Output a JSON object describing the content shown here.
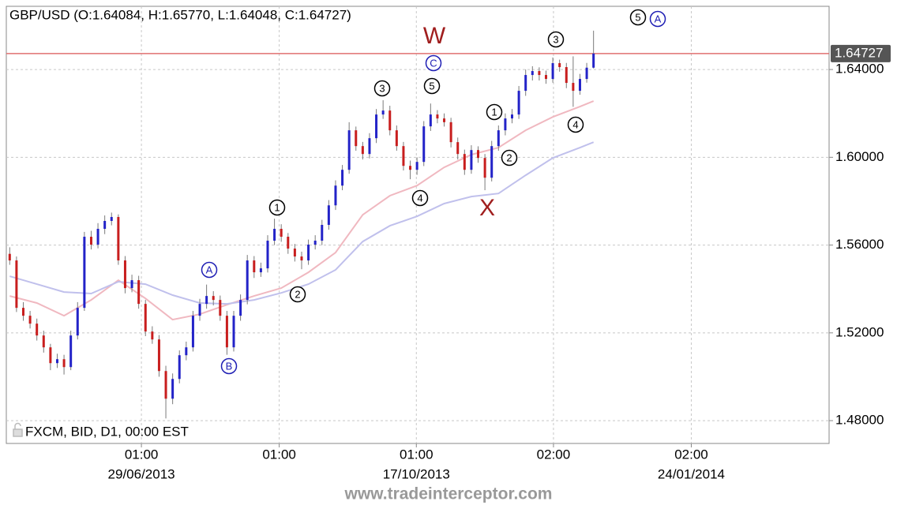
{
  "chart_data": {
    "type": "candlestick",
    "title": "GBP/USD (O:1.64084, H:1.65770, L:1.64048, C:1.64727)",
    "footer": "FXCM, BID, D1, 00:00 EST",
    "watermark": "www.tradeinterceptor.com",
    "up_color": "#2323c8",
    "down_color": "#c81e1e",
    "wick_color": "#7a7a7a",
    "grid": true,
    "xlim": [
      -0.5,
      120.7
    ],
    "ylim": [
      1.4696,
      1.6688
    ],
    "yticks": [
      {
        "value": 1.48,
        "label": "1.48000"
      },
      {
        "value": 1.52,
        "label": "1.52000"
      },
      {
        "value": 1.56,
        "label": "1.56000"
      },
      {
        "value": 1.6,
        "label": "1.60000"
      },
      {
        "value": 1.64,
        "label": "1.64000"
      }
    ],
    "xticks": [
      {
        "value": 19.4,
        "label": "01:00"
      },
      {
        "value": 39.7,
        "label": "01:00"
      },
      {
        "value": 59.9,
        "label": "01:00"
      },
      {
        "value": 80.1,
        "label": "02:00"
      },
      {
        "value": 100.4,
        "label": "02:00"
      }
    ],
    "xtick_dates": [
      "29/06/2013",
      null,
      "17/10/2013",
      null,
      "24/01/2014"
    ],
    "current_price": {
      "value": 1.64727,
      "label": "1.64727",
      "color": "#e07070"
    },
    "ohlc": [
      [
        1.556,
        1.559,
        1.551,
        1.553
      ],
      [
        1.553,
        1.5548,
        1.5295,
        1.5314
      ],
      [
        1.5314,
        1.534,
        1.5255,
        1.5278
      ],
      [
        1.5278,
        1.53,
        1.522,
        1.5242
      ],
      [
        1.5242,
        1.5265,
        1.5165,
        1.5188
      ],
      [
        1.5188,
        1.521,
        1.511,
        1.5134
      ],
      [
        1.5134,
        1.515,
        1.503,
        1.5062
      ],
      [
        1.5062,
        1.5105,
        1.504,
        1.508
      ],
      [
        1.508,
        1.51,
        1.501,
        1.5044
      ],
      [
        1.5044,
        1.521,
        1.503,
        1.5188
      ],
      [
        1.5188,
        1.534,
        1.517,
        1.5314
      ],
      [
        1.5314,
        1.566,
        1.53,
        1.5638
      ],
      [
        1.5638,
        1.5665,
        1.558,
        1.5602
      ],
      [
        1.5602,
        1.57,
        1.5585,
        1.5674
      ],
      [
        1.5674,
        1.5735,
        1.565,
        1.571
      ],
      [
        1.571,
        1.5748,
        1.569,
        1.5728
      ],
      [
        1.5728,
        1.574,
        1.551,
        1.553
      ],
      [
        1.553,
        1.555,
        1.538,
        1.5404
      ],
      [
        1.5404,
        1.5465,
        1.5385,
        1.544
      ],
      [
        1.544,
        1.546,
        1.531,
        1.5332
      ],
      [
        1.5332,
        1.535,
        1.5185,
        1.5206
      ],
      [
        1.5206,
        1.523,
        1.515,
        1.517
      ],
      [
        1.517,
        1.519,
        1.5,
        1.5026
      ],
      [
        1.5026,
        1.505,
        1.481,
        1.49
      ],
      [
        1.49,
        1.5015,
        1.4875,
        1.499
      ],
      [
        1.499,
        1.512,
        1.497,
        1.5098
      ],
      [
        1.5098,
        1.516,
        1.5075,
        1.5134
      ],
      [
        1.5134,
        1.53,
        1.5115,
        1.5278
      ],
      [
        1.5278,
        1.5355,
        1.5255,
        1.5332
      ],
      [
        1.5332,
        1.542,
        1.531,
        1.5368
      ],
      [
        1.5368,
        1.539,
        1.5325,
        1.535
      ],
      [
        1.535,
        1.537,
        1.5255,
        1.5278
      ],
      [
        1.5278,
        1.53,
        1.51,
        1.5134
      ],
      [
        1.5134,
        1.53,
        1.5115,
        1.5278
      ],
      [
        1.5278,
        1.5375,
        1.5255,
        1.535
      ],
      [
        1.535,
        1.5555,
        1.533,
        1.553
      ],
      [
        1.553,
        1.555,
        1.545,
        1.5476
      ],
      [
        1.5476,
        1.552,
        1.5455,
        1.5494
      ],
      [
        1.5494,
        1.5645,
        1.5475,
        1.562
      ],
      [
        1.562,
        1.572,
        1.56,
        1.5674
      ],
      [
        1.5674,
        1.5695,
        1.5615,
        1.5638
      ],
      [
        1.5638,
        1.5655,
        1.556,
        1.5584
      ],
      [
        1.5584,
        1.5605,
        1.5525,
        1.5548
      ],
      [
        1.5548,
        1.557,
        1.549,
        1.553
      ],
      [
        1.553,
        1.5625,
        1.551,
        1.5602
      ],
      [
        1.5602,
        1.5645,
        1.558,
        1.562
      ],
      [
        1.562,
        1.5715,
        1.56,
        1.5692
      ],
      [
        1.5692,
        1.5805,
        1.567,
        1.5781
      ],
      [
        1.5781,
        1.5895,
        1.576,
        1.5871
      ],
      [
        1.5871,
        1.5965,
        1.585,
        1.5943
      ],
      [
        1.5943,
        1.616,
        1.5925,
        1.6123
      ],
      [
        1.6123,
        1.614,
        1.603,
        1.6051
      ],
      [
        1.6051,
        1.607,
        1.599,
        1.6015
      ],
      [
        1.6015,
        1.611,
        1.5995,
        1.6087
      ],
      [
        1.6087,
        1.622,
        1.6065,
        1.6195
      ],
      [
        1.6195,
        1.626,
        1.6175,
        1.6213
      ],
      [
        1.6213,
        1.6235,
        1.61,
        1.6123
      ],
      [
        1.6123,
        1.6145,
        1.603,
        1.6051
      ],
      [
        1.6051,
        1.607,
        1.594,
        1.5961
      ],
      [
        1.5961,
        1.5985,
        1.59,
        1.5943
      ],
      [
        1.5943,
        1.6,
        1.592,
        1.5979
      ],
      [
        1.5979,
        1.6165,
        1.596,
        1.6141
      ],
      [
        1.6141,
        1.6245,
        1.612,
        1.6195
      ],
      [
        1.6195,
        1.6215,
        1.6155,
        1.6177
      ],
      [
        1.6177,
        1.62,
        1.614,
        1.616
      ],
      [
        1.616,
        1.618,
        1.6045,
        1.6069
      ],
      [
        1.6069,
        1.609,
        1.599,
        1.6015
      ],
      [
        1.6015,
        1.6035,
        1.592,
        1.5943
      ],
      [
        1.5943,
        1.6055,
        1.5925,
        1.6033
      ],
      [
        1.6033,
        1.605,
        1.5975,
        1.5997
      ],
      [
        1.5997,
        1.6015,
        1.585,
        1.5907
      ],
      [
        1.5907,
        1.6075,
        1.589,
        1.6051
      ],
      [
        1.6051,
        1.6145,
        1.603,
        1.6123
      ],
      [
        1.6123,
        1.62,
        1.61,
        1.6177
      ],
      [
        1.6177,
        1.622,
        1.6155,
        1.6195
      ],
      [
        1.6195,
        1.6325,
        1.6175,
        1.6303
      ],
      [
        1.6303,
        1.64,
        1.628,
        1.6375
      ],
      [
        1.6375,
        1.6415,
        1.635,
        1.6393
      ],
      [
        1.6393,
        1.641,
        1.635,
        1.6375
      ],
      [
        1.6375,
        1.6395,
        1.6335,
        1.6357
      ],
      [
        1.6357,
        1.6455,
        1.634,
        1.6429
      ],
      [
        1.6429,
        1.6445,
        1.639,
        1.6411
      ],
      [
        1.6411,
        1.643,
        1.6315,
        1.6339
      ],
      [
        1.6339,
        1.646,
        1.623,
        1.6303
      ],
      [
        1.6303,
        1.638,
        1.6285,
        1.6357
      ],
      [
        1.6357,
        1.643,
        1.634,
        1.64084
      ],
      [
        1.64084,
        1.6577,
        1.64048,
        1.64727
      ]
    ],
    "moving_averages": [
      {
        "color": "#f0b8c0",
        "x": [
          0,
          4,
          8,
          12,
          16,
          20,
          24,
          28,
          32,
          36,
          40,
          44,
          48,
          52,
          56,
          60,
          64,
          68,
          72,
          76,
          80,
          84,
          86
        ],
        "values": [
          1.5368,
          1.5336,
          1.5278,
          1.535,
          1.544,
          1.5357,
          1.526,
          1.5285,
          1.5328,
          1.5368,
          1.5404,
          1.5476,
          1.5566,
          1.5738,
          1.5825,
          1.5871,
          1.5954,
          1.6012,
          1.6044,
          1.6123,
          1.6184,
          1.6231,
          1.6256
        ]
      },
      {
        "color": "#c0c0ec",
        "x": [
          0,
          4,
          8,
          12,
          16,
          20,
          24,
          28,
          32,
          36,
          40,
          44,
          48,
          52,
          56,
          60,
          64,
          68,
          72,
          76,
          80,
          84,
          86
        ],
        "values": [
          1.5458,
          1.5422,
          1.5386,
          1.5379,
          1.5433,
          1.5422,
          1.5372,
          1.5336,
          1.5332,
          1.535,
          1.5382,
          1.5422,
          1.5487,
          1.5616,
          1.5688,
          1.5731,
          1.5789,
          1.5821,
          1.5835,
          1.5918,
          1.5997,
          1.6044,
          1.6069
        ]
      }
    ],
    "annotations": [
      {
        "text": "W",
        "color": "#a01e1e"
      },
      {
        "text": "X",
        "color": "#a01e1e"
      },
      {
        "text": "1",
        "color": "#000000"
      },
      {
        "text": "2",
        "color": "#000000"
      },
      {
        "text": "3",
        "color": "#000000"
      },
      {
        "text": "4",
        "color": "#000000"
      },
      {
        "text": "5",
        "color": "#000000"
      },
      {
        "text": "C",
        "color": "#1e1eb4"
      },
      {
        "text": "1",
        "color": "#000000"
      },
      {
        "text": "2",
        "color": "#000000"
      },
      {
        "text": "3",
        "color": "#000000"
      },
      {
        "text": "4",
        "color": "#000000"
      },
      {
        "text": "5",
        "color": "#000000"
      },
      {
        "text": "A",
        "color": "#1e1eb4"
      },
      {
        "text": "A",
        "color": "#1e1eb4"
      },
      {
        "text": "B",
        "color": "#1e1eb4"
      }
    ]
  }
}
